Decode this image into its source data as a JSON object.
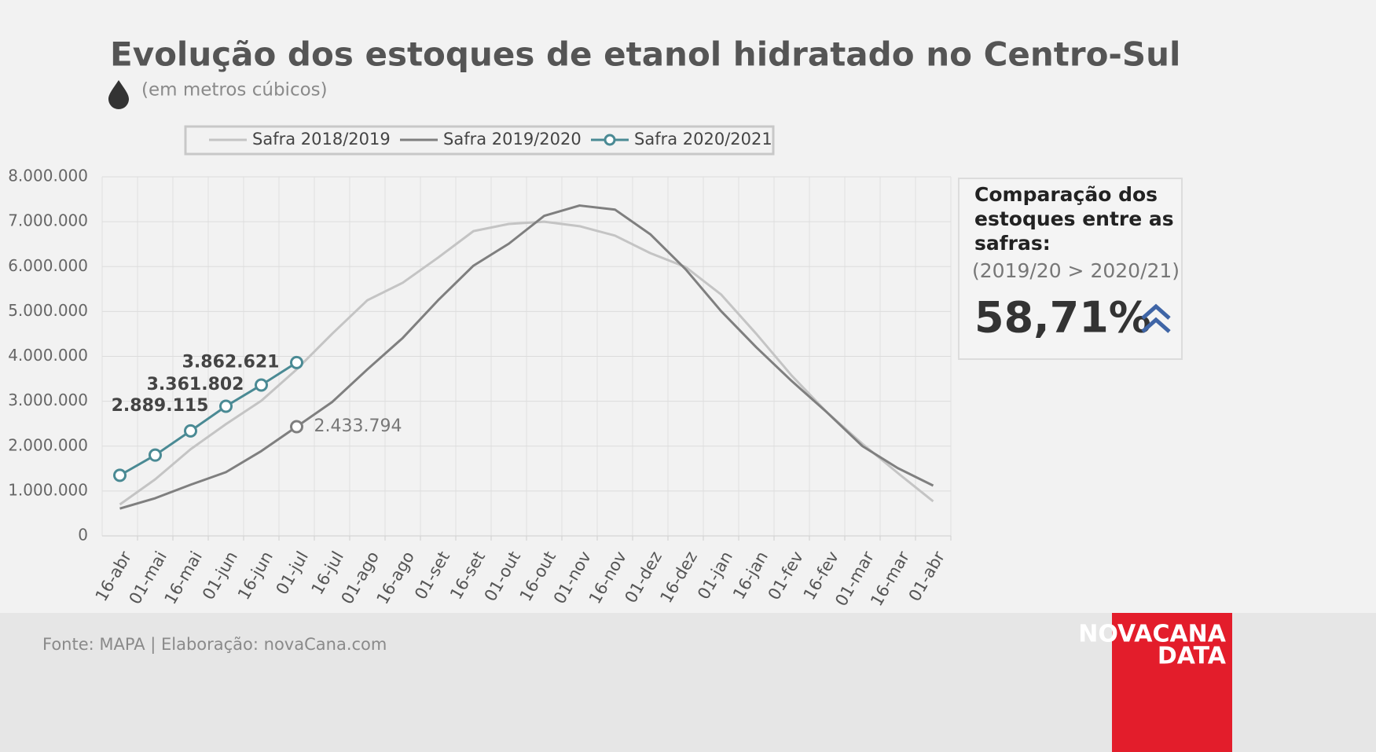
{
  "chart_data": {
    "type": "line",
    "title": "Evolução dos estoques de etanol hidratado no Centro-Sul",
    "subtitle": "(em metros cúbicos)",
    "categories": [
      "16-abr",
      "01-mai",
      "16-mai",
      "01-jun",
      "16-jun",
      "01-jul",
      "16-jul",
      "01-ago",
      "16-ago",
      "01-set",
      "16-set",
      "01-out",
      "16-out",
      "01-nov",
      "16-nov",
      "01-dez",
      "16-dez",
      "01-jan",
      "16-jan",
      "01-fev",
      "16-fev",
      "01-mar",
      "16-mar",
      "01-abr"
    ],
    "series": [
      {
        "name": "Safra 2018/2019",
        "color": "#c4c4c4",
        "values": [
          700000,
          1260000,
          1930000,
          2490000,
          3010000,
          3710000,
          4500000,
          5250000,
          5640000,
          6200000,
          6790000,
          6950000,
          7000000,
          6900000,
          6690000,
          6300000,
          5990000,
          5380000,
          4500000,
          3570000,
          2750000,
          2050000,
          1400000,
          770000
        ]
      },
      {
        "name": "Safra 2019/2020",
        "color": "#7f7f7f",
        "values": [
          610000,
          840000,
          1140000,
          1420000,
          1890000,
          2433794,
          2980000,
          3710000,
          4410000,
          5250000,
          6020000,
          6510000,
          7130000,
          7360000,
          7270000,
          6720000,
          5940000,
          5010000,
          4200000,
          3450000,
          2750000,
          2000000,
          1510000,
          1120000
        ],
        "value_labels": [
          null,
          null,
          null,
          null,
          null,
          "2.433.794",
          null,
          null,
          null,
          null,
          null,
          null,
          null,
          null,
          null,
          null,
          null,
          null,
          null,
          null,
          null,
          null,
          null,
          null
        ]
      },
      {
        "name": "Safra 2020/2021",
        "color": "#4a8a94",
        "markers": true,
        "values": [
          1350000,
          1800000,
          2340000,
          2889115,
          3361802,
          3862621,
          null,
          null,
          null,
          null,
          null,
          null,
          null,
          null,
          null,
          null,
          null,
          null,
          null,
          null,
          null,
          null,
          null,
          null
        ],
        "value_labels": [
          null,
          null,
          null,
          "2.889.115",
          "3.361.802",
          "3.862.621",
          null,
          null,
          null,
          null,
          null,
          null,
          null,
          null,
          null,
          null,
          null,
          null,
          null,
          null,
          null,
          null,
          null,
          null
        ]
      }
    ],
    "ylim": [
      0,
      8000000
    ],
    "yticks": [
      0,
      {
        "value": 1000000,
        "label": "1.000.000"
      },
      {
        "value": 2000000,
        "label": "2.000.000"
      },
      {
        "value": 3000000,
        "label": "3.000.000"
      },
      {
        "value": 4000000,
        "label": "4.000.000"
      },
      {
        "value": 5000000,
        "label": "5.000.000"
      },
      {
        "value": 6000000,
        "label": "6.000.000"
      },
      {
        "value": 7000000,
        "label": "7.000.000"
      },
      {
        "value": 8000000,
        "label": "8.000.000"
      }
    ],
    "grid": true,
    "legend": "top"
  },
  "panel": {
    "title_lines": [
      "Comparação dos",
      "estoques entre as",
      "safras:"
    ],
    "subtitle": "(2019/20 > 2020/21)",
    "value": "58,71%"
  },
  "footer": {
    "source": "Fonte: MAPA  | Elaboração: novaCana.com",
    "logo": [
      "NOVACANA",
      "DATA"
    ]
  }
}
